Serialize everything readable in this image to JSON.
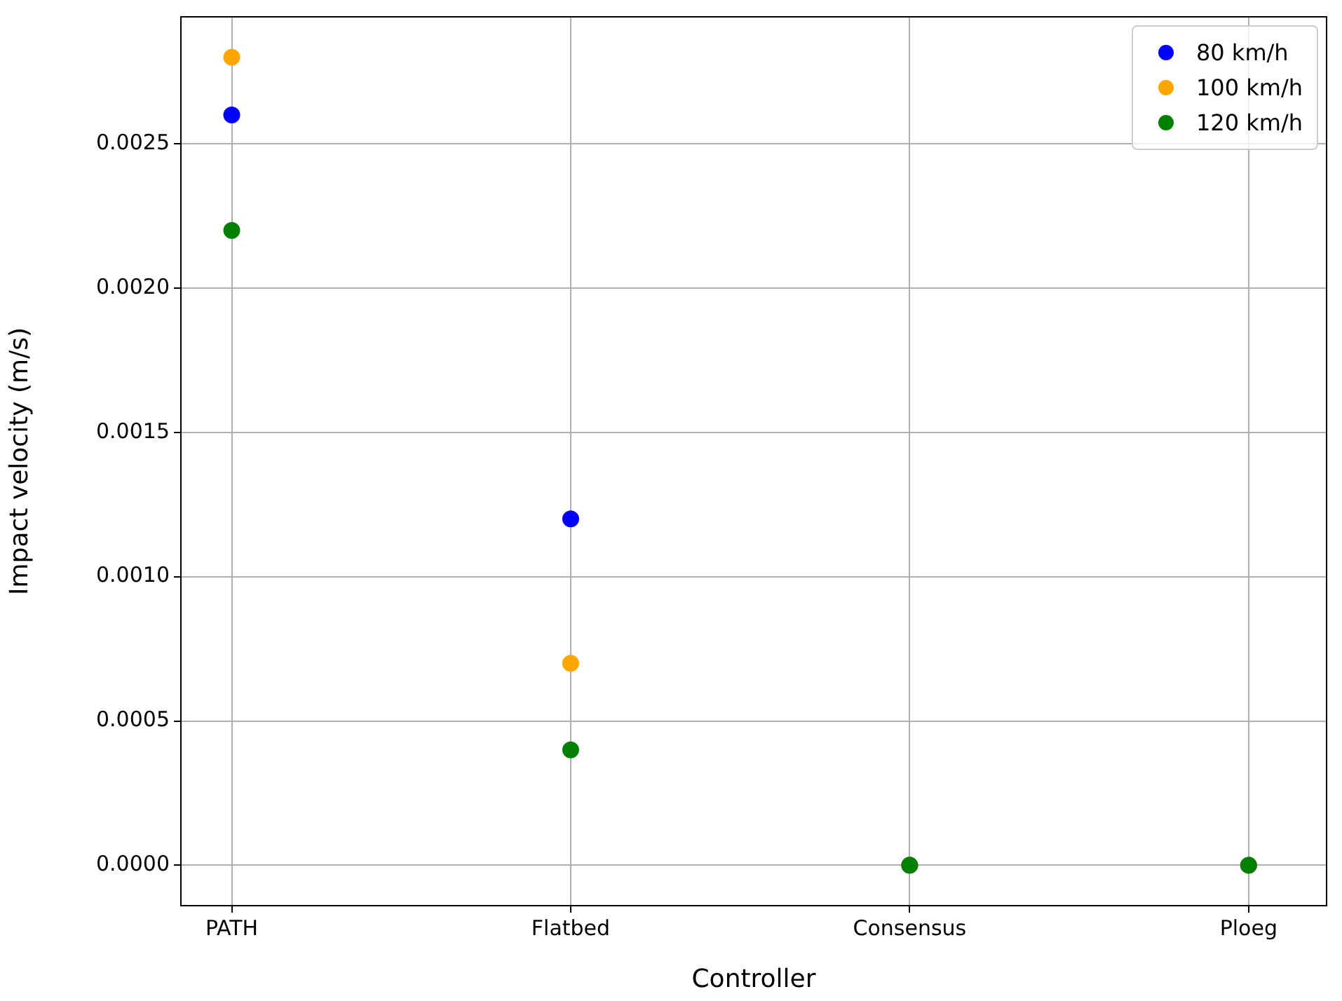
{
  "chart_data": {
    "type": "scatter",
    "xlabel": "Controller",
    "ylabel": "Impact velocity (m/s)",
    "categories": [
      "PATH",
      "Flatbed",
      "Consensus",
      "Ploeg"
    ],
    "series": [
      {
        "name": "80 km/h",
        "color": "#0000ff",
        "values": [
          0.0026,
          0.0012,
          0,
          0
        ]
      },
      {
        "name": "100 km/h",
        "color": "#ffa500",
        "values": [
          0.0028,
          0.0007,
          0,
          0
        ]
      },
      {
        "name": "120 km/h",
        "color": "#008000",
        "values": [
          0.0022,
          0.0004,
          0,
          0
        ]
      }
    ],
    "ylim": [
      -0.00014,
      0.00294
    ],
    "yticks": [
      {
        "value": 0,
        "label": "0.0000"
      },
      {
        "value": 0.0005,
        "label": "0.0005"
      },
      {
        "value": 0.001,
        "label": "0.0010"
      },
      {
        "value": 0.0015,
        "label": "0.0015"
      },
      {
        "value": 0.002,
        "label": "0.0020"
      },
      {
        "value": 0.0025,
        "label": "0.0025"
      }
    ],
    "grid": true,
    "legend": "top right",
    "marker": "circle"
  }
}
